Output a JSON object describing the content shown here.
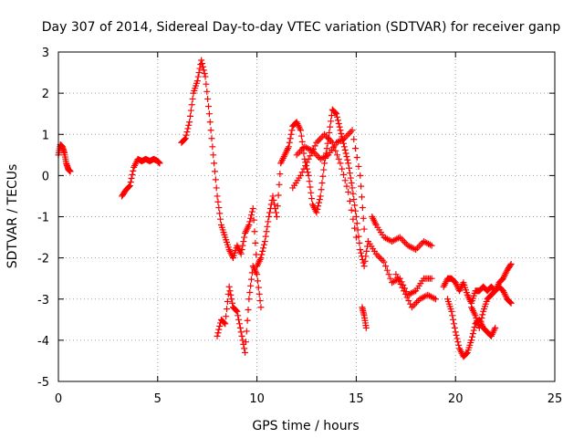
{
  "chart_data": {
    "type": "scatter",
    "title": "Day 307 of 2014, Sidereal Day-to-day VTEC variation (SDTVAR) for receiver ganp",
    "xlabel": "GPS time / hours",
    "ylabel": "SDTVAR / TECUs",
    "xlim": [
      0,
      25
    ],
    "ylim": [
      -5,
      3
    ],
    "xticks": [
      0,
      5,
      10,
      15,
      20,
      25
    ],
    "yticks": [
      -5,
      -4,
      -3,
      -2,
      -1,
      0,
      1,
      2,
      3
    ],
    "xtick_labels": [
      "0",
      "5",
      "10",
      "15",
      "20",
      "25"
    ],
    "ytick_labels": [
      "-5",
      "-4",
      "-3",
      "-2",
      "-1",
      "0",
      "1",
      "2",
      "3"
    ],
    "grid": true,
    "marker": "+",
    "series": [
      {
        "name": "SDTVAR",
        "color": "#ff0000",
        "segments": [
          [
            [
              0.0,
              0.5
            ],
            [
              0.1,
              0.75
            ],
            [
              0.2,
              0.7
            ],
            [
              0.3,
              0.55
            ],
            [
              0.4,
              0.3
            ],
            [
              0.5,
              0.15
            ],
            [
              0.6,
              0.1
            ]
          ],
          [
            [
              3.2,
              -0.5
            ],
            [
              3.4,
              -0.35
            ],
            [
              3.6,
              -0.25
            ],
            [
              3.8,
              0.2
            ],
            [
              4.0,
              0.4
            ],
            [
              4.2,
              0.35
            ],
            [
              4.4,
              0.4
            ],
            [
              4.6,
              0.35
            ],
            [
              4.8,
              0.4
            ],
            [
              5.0,
              0.35
            ],
            [
              5.1,
              0.3
            ]
          ],
          [
            [
              6.2,
              0.8
            ],
            [
              6.4,
              0.9
            ],
            [
              6.6,
              1.3
            ],
            [
              6.8,
              2.0
            ],
            [
              7.0,
              2.3
            ],
            [
              7.2,
              2.8
            ],
            [
              7.4,
              2.4
            ],
            [
              7.6,
              1.5
            ],
            [
              7.8,
              0.5
            ],
            [
              8.0,
              -0.5
            ],
            [
              8.2,
              -1.2
            ],
            [
              8.4,
              -1.5
            ],
            [
              8.6,
              -1.8
            ],
            [
              8.8,
              -2.0
            ],
            [
              9.0,
              -1.7
            ],
            [
              9.2,
              -1.9
            ],
            [
              9.4,
              -1.4
            ],
            [
              9.6,
              -1.2
            ],
            [
              9.8,
              -0.8
            ],
            [
              10.0,
              -2.2
            ],
            [
              10.2,
              -2.0
            ],
            [
              10.4,
              -1.6
            ],
            [
              10.6,
              -1.0
            ],
            [
              10.8,
              -0.5
            ],
            [
              11.0,
              -1.0
            ],
            [
              11.2,
              0.3
            ],
            [
              11.4,
              0.5
            ],
            [
              11.6,
              0.7
            ],
            [
              11.8,
              1.2
            ],
            [
              12.0,
              1.3
            ],
            [
              12.2,
              1.1
            ],
            [
              12.4,
              0.4
            ],
            [
              12.6,
              0.0
            ],
            [
              12.8,
              -0.7
            ],
            [
              13.0,
              -0.9
            ],
            [
              13.2,
              -0.5
            ],
            [
              13.4,
              0.3
            ],
            [
              13.6,
              0.9
            ],
            [
              13.8,
              1.6
            ],
            [
              14.0,
              1.5
            ],
            [
              14.2,
              1.1
            ],
            [
              14.4,
              0.7
            ],
            [
              14.6,
              0.3
            ],
            [
              14.8,
              -0.3
            ],
            [
              15.0,
              -1.0
            ],
            [
              15.2,
              -1.8
            ],
            [
              15.4,
              -2.2
            ],
            [
              15.6,
              -1.6
            ]
          ],
          [
            [
              8.0,
              -3.9
            ],
            [
              8.2,
              -3.5
            ],
            [
              8.4,
              -3.6
            ],
            [
              8.6,
              -2.7
            ],
            [
              8.8,
              -3.2
            ],
            [
              9.0,
              -3.3
            ],
            [
              9.2,
              -3.8
            ],
            [
              9.4,
              -4.3
            ],
            [
              9.6,
              -3.0
            ],
            [
              9.8,
              -2.2
            ],
            [
              10.0,
              -2.4
            ],
            [
              10.2,
              -3.2
            ]
          ],
          [
            [
              12.0,
              0.5
            ],
            [
              12.4,
              0.7
            ],
            [
              12.8,
              0.6
            ],
            [
              13.2,
              0.4
            ],
            [
              13.6,
              0.5
            ],
            [
              14.0,
              0.8
            ],
            [
              14.4,
              0.9
            ],
            [
              14.8,
              1.1
            ],
            [
              15.2,
              0.0
            ],
            [
              15.4,
              -1.3
            ]
          ],
          [
            [
              11.8,
              -0.3
            ],
            [
              12.2,
              0.0
            ],
            [
              12.6,
              0.4
            ],
            [
              13.0,
              0.8
            ],
            [
              13.4,
              1.0
            ],
            [
              13.8,
              0.8
            ],
            [
              14.2,
              0.3
            ],
            [
              14.6,
              -0.4
            ],
            [
              15.0,
              -1.5
            ]
          ],
          [
            [
              15.3,
              -3.2
            ],
            [
              15.4,
              -3.4
            ],
            [
              15.5,
              -3.7
            ]
          ],
          [
            [
              15.8,
              -1.0
            ],
            [
              16.0,
              -1.2
            ],
            [
              16.4,
              -1.5
            ],
            [
              16.8,
              -1.6
            ],
            [
              17.2,
              -1.5
            ],
            [
              17.6,
              -1.7
            ],
            [
              18.0,
              -1.8
            ],
            [
              18.4,
              -1.6
            ],
            [
              18.8,
              -1.7
            ]
          ],
          [
            [
              15.6,
              -1.6
            ],
            [
              16.0,
              -1.9
            ],
            [
              16.4,
              -2.1
            ],
            [
              16.8,
              -2.6
            ],
            [
              17.2,
              -2.5
            ],
            [
              17.6,
              -2.9
            ],
            [
              18.0,
              -2.8
            ],
            [
              18.4,
              -2.5
            ],
            [
              18.8,
              -2.5
            ]
          ],
          [
            [
              17.0,
              -2.4
            ],
            [
              17.4,
              -2.8
            ],
            [
              17.8,
              -3.2
            ],
            [
              18.2,
              -3.0
            ],
            [
              18.6,
              -2.9
            ],
            [
              19.0,
              -3.0
            ]
          ],
          [
            [
              19.4,
              -2.7
            ],
            [
              19.6,
              -2.5
            ],
            [
              19.8,
              -2.5
            ],
            [
              20.0,
              -2.6
            ],
            [
              20.2,
              -2.8
            ],
            [
              20.4,
              -2.6
            ],
            [
              20.6,
              -2.9
            ],
            [
              20.8,
              -3.1
            ],
            [
              21.0,
              -2.8
            ],
            [
              21.2,
              -2.8
            ],
            [
              21.4,
              -2.7
            ],
            [
              21.6,
              -2.8
            ],
            [
              21.8,
              -2.7
            ],
            [
              22.0,
              -2.8
            ],
            [
              22.2,
              -2.7
            ],
            [
              22.4,
              -2.8
            ],
            [
              22.6,
              -3.0
            ],
            [
              22.8,
              -3.1
            ]
          ],
          [
            [
              19.6,
              -3.0
            ],
            [
              19.8,
              -3.3
            ],
            [
              20.0,
              -3.8
            ],
            [
              20.2,
              -4.2
            ],
            [
              20.4,
              -4.4
            ],
            [
              20.6,
              -4.3
            ],
            [
              20.8,
              -4.0
            ],
            [
              21.0,
              -3.6
            ],
            [
              21.2,
              -3.5
            ],
            [
              21.4,
              -3.7
            ],
            [
              21.6,
              -3.8
            ],
            [
              21.8,
              -3.9
            ],
            [
              22.0,
              -3.7
            ]
          ],
          [
            [
              20.8,
              -3.2
            ],
            [
              21.0,
              -3.4
            ],
            [
              21.2,
              -3.7
            ],
            [
              21.4,
              -3.3
            ],
            [
              21.6,
              -3.0
            ],
            [
              21.8,
              -2.9
            ],
            [
              22.0,
              -2.8
            ],
            [
              22.2,
              -2.6
            ],
            [
              22.4,
              -2.5
            ],
            [
              22.6,
              -2.3
            ],
            [
              22.8,
              -2.15
            ]
          ]
        ]
      }
    ]
  }
}
